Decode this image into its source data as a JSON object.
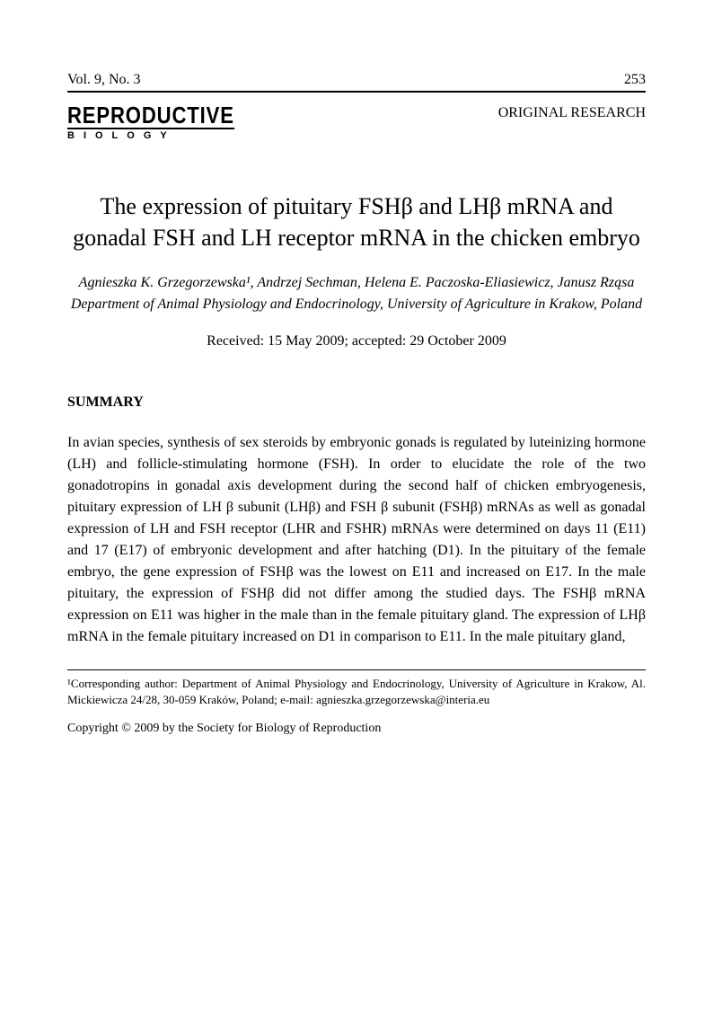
{
  "header": {
    "volume": "Vol. 9, No. 3",
    "page_number": "253",
    "journal_main": "REPRODUCTIVE",
    "journal_sub": "BIOLOGY",
    "article_type": "ORIGINAL RESEARCH"
  },
  "title": "The expression of pituitary FSHβ and LHβ mRNA and gonadal FSH and LH receptor mRNA in the chicken embryo",
  "authors": "Agnieszka K. Grzegorzewska¹, Andrzej Sechman, Helena E. Paczoska-Eliasiewicz, Janusz Rząsa",
  "affiliation": "Department of Animal Physiology and Endocrinology, University of Agriculture in Krakow, Poland",
  "dates": "Received: 15 May 2009; accepted: 29 October 2009",
  "summary": {
    "heading": "SUMMARY",
    "body": "In avian species, synthesis of sex steroids by embryonic gonads is regulated by luteinizing hormone (LH) and follicle-stimulating hormone (FSH). In order to elucidate the role of the two gonadotropins in gonadal axis development during the second half of chicken embryogenesis, pituitary expression of LH β subunit (LHβ) and FSH β subunit (FSHβ) mRNAs as well as gonadal expression of LH and FSH receptor (LHR and FSHR) mRNAs were determined on days 11 (E11) and 17 (E17) of embryonic development and after hatching (D1). In the pituitary of the female embryo, the gene expression of FSHβ was the lowest on E11 and increased on E17. In the male pituitary, the expression of FSHβ did not differ among the studied days. The FSHβ mRNA expression on E11 was higher in the male than in the female pituitary gland. The expression of LHβ mRNA in the female pituitary increased on D1 in comparison to E11. In the male pituitary gland,"
  },
  "footnote": "¹Corresponding author: Department of Animal Physiology and Endocrinology, University of Agriculture in Krakow, Al. Mickiewicza 24/28, 30-059 Kraków, Poland; e-mail: agnieszka.grzegorzewska@interia.eu",
  "copyright": "Copyright © 2009 by the Society for Biology of Reproduction"
}
